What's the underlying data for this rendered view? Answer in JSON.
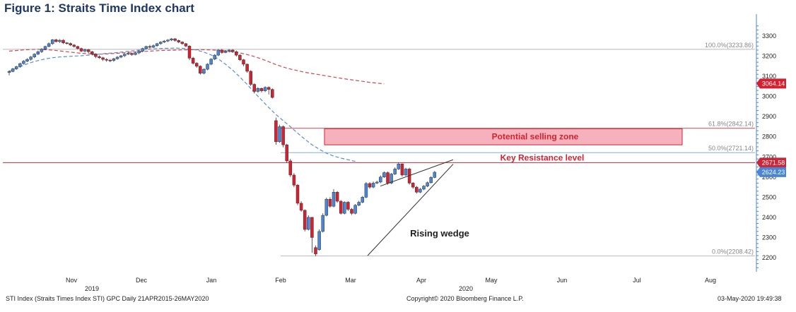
{
  "figure_title": "Figure 1: Straits Time Index chart",
  "footer": {
    "left": "STI Index (Straits Times Index STI) GPC  Daily 21APR2015-26MAY2020",
    "center": "Copyright© 2020 Bloomberg Finance L.P.",
    "right": "03-May-2020 19:49:38"
  },
  "chart_data": {
    "type": "candlestick",
    "title": "Figure 1: Straits Time Index chart",
    "ylim": [
      2180,
      3360
    ],
    "y_ticks": [
      2200,
      2300,
      2400,
      2500,
      2600,
      2700,
      2800,
      2900,
      3000,
      3100,
      3200,
      3300
    ],
    "x_axis": {
      "months": [
        "Nov",
        "Dec",
        "Jan",
        "Feb",
        "Mar",
        "Apr",
        "May",
        "Jun",
        "Jul",
        "Aug"
      ],
      "years": [
        {
          "label": "2019",
          "under": "Nov"
        },
        {
          "label": "2020",
          "under": "Apr"
        }
      ]
    },
    "candles": [
      [
        3119,
        3124,
        3105,
        3130
      ],
      [
        3124,
        3137,
        3120,
        3142
      ],
      [
        3137,
        3148,
        3132,
        3152
      ],
      [
        3148,
        3163,
        3142,
        3168
      ],
      [
        3163,
        3175,
        3158,
        3180
      ],
      [
        3175,
        3184,
        3170,
        3190
      ],
      [
        3184,
        3196,
        3178,
        3200
      ],
      [
        3196,
        3210,
        3190,
        3214
      ],
      [
        3210,
        3222,
        3205,
        3228
      ],
      [
        3222,
        3235,
        3216,
        3240
      ],
      [
        3235,
        3248,
        3230,
        3252
      ],
      [
        3248,
        3262,
        3244,
        3268
      ],
      [
        3262,
        3281,
        3256,
        3285
      ],
      [
        3281,
        3272,
        3268,
        3286
      ],
      [
        3272,
        3279,
        3266,
        3284
      ],
      [
        3279,
        3266,
        3260,
        3284
      ],
      [
        3266,
        3263,
        3258,
        3270
      ],
      [
        3263,
        3255,
        3250,
        3268
      ],
      [
        3255,
        3248,
        3242,
        3260
      ],
      [
        3248,
        3238,
        3232,
        3252
      ],
      [
        3238,
        3225,
        3220,
        3242
      ],
      [
        3225,
        3232,
        3218,
        3238
      ],
      [
        3232,
        3222,
        3216,
        3236
      ],
      [
        3222,
        3210,
        3205,
        3226
      ],
      [
        3210,
        3198,
        3190,
        3214
      ],
      [
        3198,
        3192,
        3186,
        3204
      ],
      [
        3192,
        3184,
        3176,
        3196
      ],
      [
        3184,
        3180,
        3172,
        3190
      ],
      [
        3180,
        3178,
        3170,
        3186
      ],
      [
        3178,
        3187,
        3172,
        3192
      ],
      [
        3187,
        3195,
        3182,
        3200
      ],
      [
        3195,
        3202,
        3190,
        3206
      ],
      [
        3202,
        3210,
        3196,
        3215
      ],
      [
        3210,
        3214,
        3205,
        3220
      ],
      [
        3214,
        3208,
        3202,
        3218
      ],
      [
        3208,
        3216,
        3204,
        3220
      ],
      [
        3216,
        3225,
        3210,
        3230
      ],
      [
        3225,
        3238,
        3220,
        3242
      ],
      [
        3238,
        3248,
        3232,
        3252
      ],
      [
        3248,
        3244,
        3238,
        3256
      ],
      [
        3244,
        3252,
        3240,
        3258
      ],
      [
        3252,
        3262,
        3246,
        3266
      ],
      [
        3262,
        3270,
        3256,
        3274
      ],
      [
        3270,
        3275,
        3265,
        3280
      ],
      [
        3275,
        3280,
        3270,
        3284
      ],
      [
        3280,
        3286,
        3275,
        3290
      ],
      [
        3286,
        3278,
        3272,
        3290
      ],
      [
        3278,
        3270,
        3264,
        3282
      ],
      [
        3270,
        3262,
        3256,
        3274
      ],
      [
        3262,
        3250,
        3245,
        3266
      ],
      [
        3250,
        3190,
        3180,
        3254
      ],
      [
        3190,
        3165,
        3158,
        3196
      ],
      [
        3165,
        3150,
        3142,
        3170
      ],
      [
        3150,
        3115,
        3108,
        3155
      ],
      [
        3115,
        3135,
        3110,
        3140
      ],
      [
        3135,
        3160,
        3130,
        3165
      ],
      [
        3160,
        3185,
        3155,
        3190
      ],
      [
        3185,
        3205,
        3180,
        3210
      ],
      [
        3205,
        3230,
        3200,
        3235
      ],
      [
        3230,
        3218,
        3212,
        3236
      ],
      [
        3218,
        3224,
        3214,
        3230
      ],
      [
        3224,
        3230,
        3218,
        3235
      ],
      [
        3230,
        3222,
        3216,
        3235
      ],
      [
        3222,
        3205,
        3198,
        3228
      ],
      [
        3205,
        3182,
        3176,
        3210
      ],
      [
        3182,
        3160,
        3150,
        3186
      ],
      [
        3160,
        3125,
        3118,
        3164
      ],
      [
        3125,
        3060,
        3052,
        3130
      ],
      [
        3060,
        3025,
        3015,
        3066
      ],
      [
        3025,
        3040,
        3018,
        3046
      ],
      [
        3040,
        3028,
        3020,
        3044
      ],
      [
        3028,
        3045,
        3022,
        3050
      ],
      [
        3045,
        3035,
        3010,
        3050
      ],
      [
        3035,
        2995,
        2990,
        3040
      ],
      [
        2880,
        2775,
        2760,
        2895
      ],
      [
        2775,
        2850,
        2770,
        2860
      ],
      [
        2850,
        2760,
        2748,
        2856
      ],
      [
        2760,
        2680,
        2670,
        2765
      ],
      [
        2680,
        2610,
        2600,
        2690
      ],
      [
        2610,
        2560,
        2550,
        2620
      ],
      [
        2560,
        2470,
        2460,
        2565
      ],
      [
        2470,
        2435,
        2428,
        2480
      ],
      [
        2435,
        2340,
        2330,
        2440
      ],
      [
        2340,
        2400,
        2335,
        2410
      ],
      [
        2400,
        2300,
        2225,
        2402
      ],
      [
        2250,
        2218,
        2208,
        2260
      ],
      [
        2240,
        2330,
        2235,
        2340
      ],
      [
        2330,
        2410,
        2325,
        2420
      ],
      [
        2410,
        2490,
        2405,
        2498
      ],
      [
        2490,
        2455,
        2448,
        2500
      ],
      [
        2455,
        2525,
        2450,
        2540
      ],
      [
        2525,
        2480,
        2472,
        2530
      ],
      [
        2480,
        2420,
        2414,
        2486
      ],
      [
        2420,
        2475,
        2415,
        2480
      ],
      [
        2475,
        2440,
        2432,
        2480
      ],
      [
        2440,
        2420,
        2412,
        2446
      ],
      [
        2420,
        2460,
        2415,
        2466
      ],
      [
        2460,
        2475,
        2455,
        2482
      ],
      [
        2475,
        2500,
        2470,
        2506
      ],
      [
        2500,
        2568,
        2495,
        2575
      ],
      [
        2568,
        2550,
        2542,
        2575
      ],
      [
        2550,
        2570,
        2545,
        2578
      ],
      [
        2570,
        2575,
        2565,
        2582
      ],
      [
        2575,
        2600,
        2570,
        2608
      ],
      [
        2600,
        2622,
        2596,
        2628
      ],
      [
        2622,
        2570,
        2562,
        2628
      ],
      [
        2570,
        2615,
        2565,
        2620
      ],
      [
        2615,
        2640,
        2610,
        2648
      ],
      [
        2640,
        2665,
        2635,
        2672
      ],
      [
        2665,
        2610,
        2602,
        2668
      ],
      [
        2610,
        2640,
        2605,
        2646
      ],
      [
        2640,
        2570,
        2562,
        2646
      ],
      [
        2570,
        2550,
        2542,
        2575
      ],
      [
        2550,
        2525,
        2518,
        2556
      ],
      [
        2525,
        2540,
        2520,
        2546
      ],
      [
        2540,
        2555,
        2535,
        2560
      ],
      [
        2555,
        2572,
        2550,
        2578
      ],
      [
        2572,
        2598,
        2568,
        2604
      ],
      [
        2598,
        2624,
        2594,
        2630
      ]
    ],
    "series": [
      {
        "name": "",
        "style": "dashed",
        "color": "#d6464f",
        "values": [
          3225,
          3228,
          3231,
          3233,
          3234,
          3232,
          3230,
          3226,
          3222,
          3218,
          3214,
          3212,
          3210,
          3210,
          3212,
          3214,
          3217,
          3220,
          3222,
          3224,
          3226,
          3228,
          3229,
          3230,
          3231,
          3232,
          3232,
          3232,
          3231,
          3229,
          3226,
          3222,
          3216,
          3208,
          3198,
          3186,
          3172,
          3158,
          3146,
          3136,
          3128,
          3120,
          3114,
          3108,
          3102,
          3096,
          3090,
          3085,
          3080,
          3075,
          3070,
          3066,
          3063
        ]
      },
      {
        "name": "",
        "style": "dashed",
        "color": "#5b8fc7",
        "values": [
          3125,
          3140,
          3155,
          3168,
          3178,
          3186,
          3192,
          3196,
          3198,
          3200,
          3202,
          3205,
          3208,
          3212,
          3215,
          3218,
          3222,
          3226,
          3230,
          3234,
          3236,
          3238,
          3239,
          3240,
          3239,
          3236,
          3230,
          3220,
          3206,
          3186,
          3160,
          3130,
          3096,
          3060,
          3020,
          2982,
          2945,
          2910,
          2880,
          2850,
          2818,
          2788,
          2760,
          2738,
          2718,
          2704,
          2694,
          2686,
          2678
        ]
      }
    ],
    "horizontal_levels": [
      {
        "value": 3233.86,
        "label": "100.0%(3233.86)",
        "color": "#b8b8b8"
      },
      {
        "value": 2842.14,
        "label": "61.8%(2842.14)",
        "color": "#d6464f"
      },
      {
        "value": 2721.14,
        "label": "50.0%(2721.14)",
        "color": "#7fb2e5"
      },
      {
        "value": 2671.58,
        "label": "",
        "color": "#c8273a"
      },
      {
        "value": 2208.42,
        "label": "0.0%(2208.42)",
        "color": "#b8b8b8"
      }
    ],
    "price_tags": [
      {
        "value": 3064.14,
        "label": "3064.14",
        "color": "#d6202f"
      },
      {
        "value": 2671.58,
        "label": "2671.58",
        "color": "#c8273a"
      },
      {
        "value": 2624.23,
        "label": "2624.23",
        "color": "#4a86d6"
      }
    ],
    "annotations": {
      "selling_zone": {
        "label": "Potential selling zone",
        "from": 2760,
        "to": 2840
      },
      "key_resistance": {
        "label": "Key Resistance level",
        "value": 2671.58
      },
      "wedge": {
        "label": "Rising wedge",
        "upper_start": 2555,
        "upper_end": 2686,
        "lower_start": 2210,
        "lower_end": 2664
      }
    }
  }
}
